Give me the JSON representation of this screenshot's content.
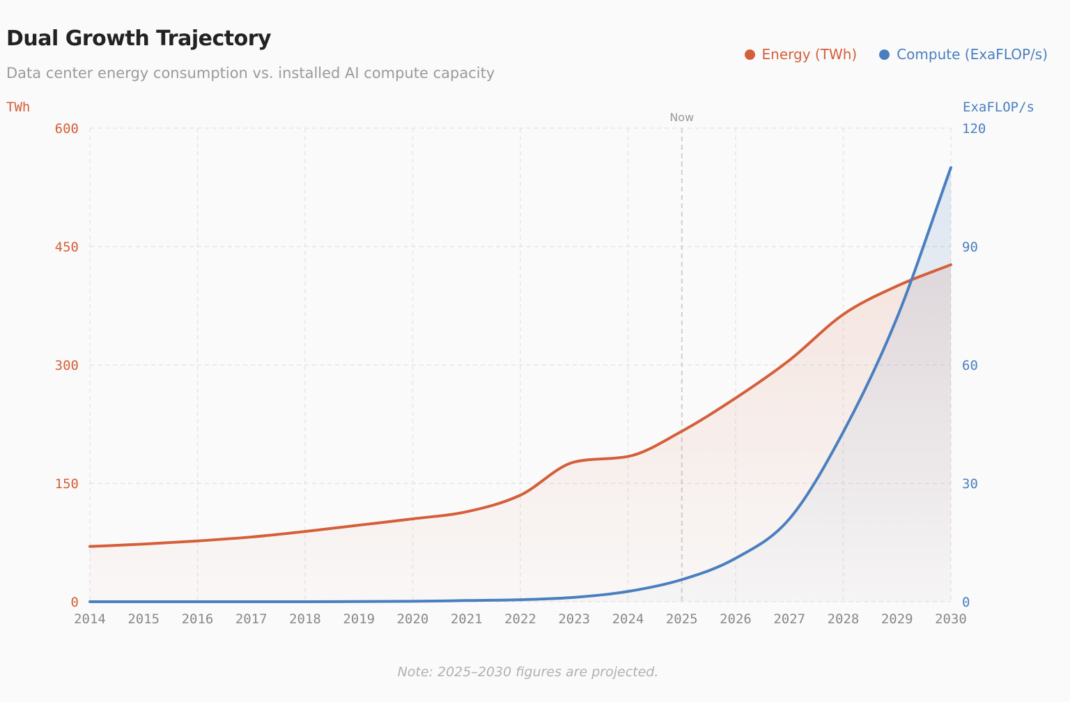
{
  "header": {
    "title": "Dual Growth Trajectory",
    "subtitle": "Data center energy consumption vs. installed AI compute capacity"
  },
  "note": "Note: 2025–2030 figures are projected.",
  "chart_data": {
    "type": "line",
    "title": "Dual Growth Trajectory",
    "x": [
      2014,
      2015,
      2016,
      2017,
      2018,
      2019,
      2020,
      2021,
      2022,
      2023,
      2024,
      2025,
      2026,
      2027,
      2028,
      2029,
      2030
    ],
    "x_ticks": [
      "2014",
      "2015",
      "2016",
      "2017",
      "2018",
      "2019",
      "2020",
      "2021",
      "2022",
      "2023",
      "2024",
      "2025",
      "2026",
      "2027",
      "2028",
      "2029",
      "2030"
    ],
    "series": [
      {
        "name": "Energy (TWh)",
        "axis": "left",
        "color": "#d45f3a",
        "values": [
          70,
          73,
          77,
          82,
          89,
          97,
          105,
          114,
          135,
          177,
          184,
          216,
          258,
          306,
          364,
          400,
          427
        ]
      },
      {
        "name": "Compute (ExaFLOP/s)",
        "axis": "right",
        "color": "#4a7fbf",
        "values": [
          0,
          0,
          0,
          0,
          0,
          0.05,
          0.1,
          0.3,
          0.5,
          1.1,
          2.6,
          5.6,
          11,
          21,
          43,
          72,
          110
        ]
      }
    ],
    "y_left": {
      "label": "TWh",
      "ylim": [
        0,
        600
      ],
      "ticks": [
        "0",
        "150",
        "300",
        "450",
        "600"
      ]
    },
    "y_right": {
      "label": "ExaFLOP/s",
      "ylim": [
        0,
        120
      ],
      "ticks": [
        "0",
        "30",
        "60",
        "90",
        "120"
      ]
    },
    "annotation": {
      "label": "Now",
      "x": 2025
    },
    "grid": true,
    "legend_placement": "top-right"
  }
}
